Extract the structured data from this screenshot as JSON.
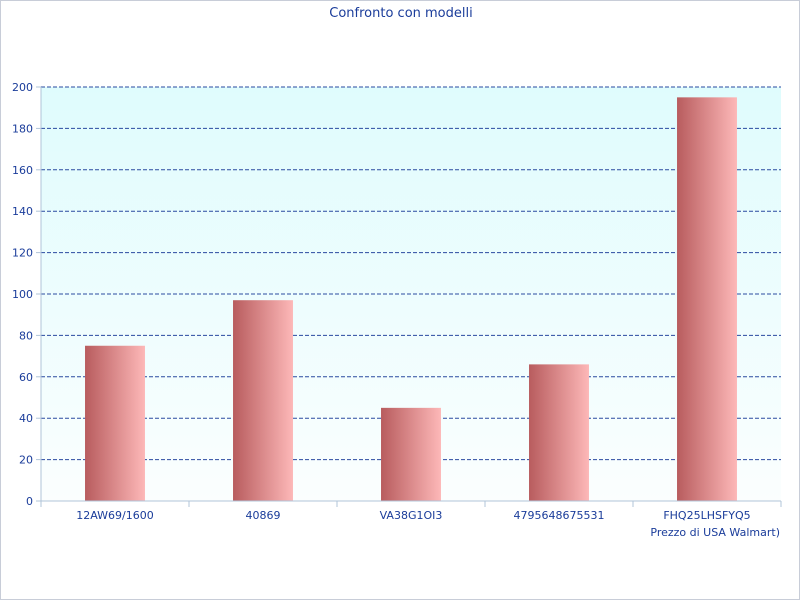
{
  "chart_data": {
    "type": "bar",
    "title": "Confronto con modelli",
    "categories": [
      "12AW69/1600",
      "40869",
      "VA38G1OI3",
      "4795648675531",
      "FHQ25LHSFYQ5"
    ],
    "series": [
      {
        "name": "Prezzo di USA Walmart)",
        "values": [
          75,
          97,
          45,
          66,
          195
        ]
      }
    ],
    "xlabel": "",
    "ylabel": "",
    "ylim": [
      0,
      200
    ],
    "yticks": [
      0,
      20,
      40,
      60,
      80,
      100,
      120,
      140,
      160,
      180,
      200
    ],
    "grid": true,
    "legend_position": "bottom-right",
    "colors": {
      "bar_dark": "#b85c5e",
      "bar_light": "#fdb8b8",
      "plot_bg_top": "#dffcfd",
      "plot_bg_bottom": "#fbfefe",
      "grid": "#2a4aa0",
      "text": "#1a3c9a",
      "axis": "#b0c4d8"
    }
  }
}
